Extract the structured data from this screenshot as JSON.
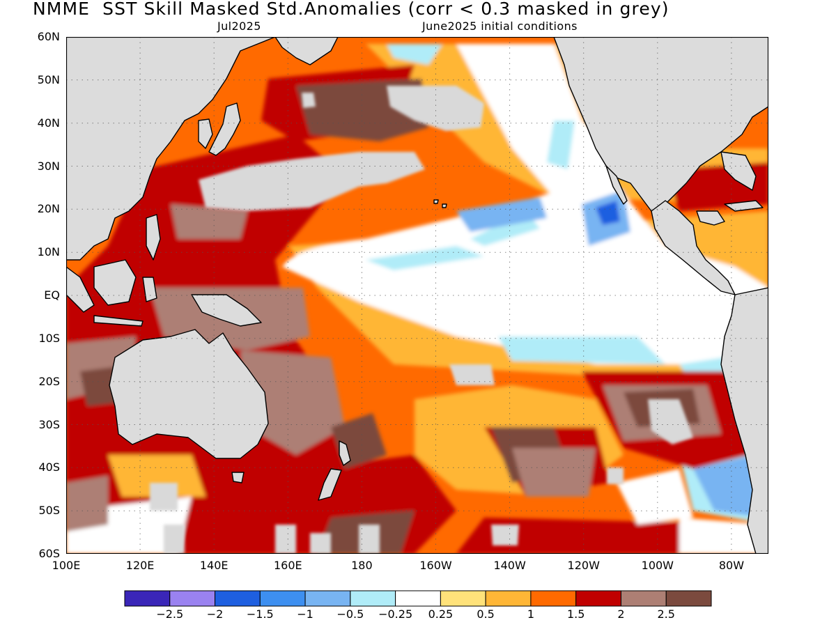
{
  "header": {
    "title": "NMME  SST Skill Masked Std.Anomalies (corr < 0.3 masked in grey)",
    "subtitle_left": "Jul2025",
    "subtitle_right": "June2025 initial conditions"
  },
  "map": {
    "lat_range": [
      -60,
      60
    ],
    "lon_range": [
      100,
      290
    ],
    "lat_labels": [
      "60N",
      "50N",
      "40N",
      "30N",
      "20N",
      "10N",
      "EQ",
      "10S",
      "20S",
      "30S",
      "40S",
      "50S",
      "60S"
    ],
    "lon_labels": [
      "100E",
      "120E",
      "140E",
      "160E",
      "180",
      "160W",
      "140W",
      "120W",
      "100W",
      "80W"
    ],
    "grid": true,
    "mask_color": "#d9d9d9",
    "land_color": "#dcdcdc"
  },
  "colorbar": {
    "colors": [
      "#3a26b8",
      "#9a82f0",
      "#1e5fe0",
      "#3d8ff0",
      "#78b4f2",
      "#b0ecf8",
      "#ffffff",
      "#ffe27a",
      "#ffb636",
      "#ff6a00",
      "#c00000",
      "#ad7f74",
      "#7b4a3e"
    ],
    "labels": [
      "-2.5",
      "-2",
      "-1.5",
      "-1",
      "-0.5",
      "-0.25",
      "0.25",
      "0.5",
      "1",
      "1.5",
      "2",
      "2.5"
    ]
  }
}
